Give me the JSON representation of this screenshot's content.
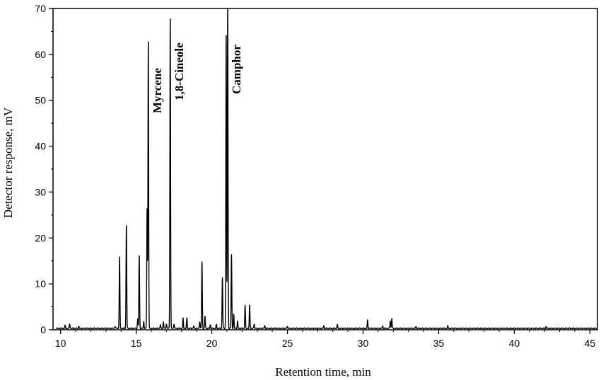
{
  "chart_data": {
    "type": "line",
    "title": "",
    "xlabel": "Retention time, min",
    "ylabel": "Detector response, mV",
    "xlim": [
      9.5,
      45.5
    ],
    "ylim": [
      0,
      70
    ],
    "xticks": [
      "10",
      "15",
      "20",
      "25",
      "30",
      "35",
      "40",
      "45"
    ],
    "yticks": [
      "0",
      "10",
      "20",
      "30",
      "40",
      "50",
      "60",
      "70"
    ],
    "grid": false,
    "legend": "none",
    "baseline": 0.3,
    "series": [
      {
        "color": "#000000",
        "peaks": [
          [
            10.3,
            0.6
          ],
          [
            10.6,
            1.0
          ],
          [
            11.2,
            0.4
          ],
          [
            13.6,
            0.5
          ],
          [
            13.9,
            15.5
          ],
          [
            14.35,
            22.5
          ],
          [
            15.1,
            2.0
          ],
          [
            15.2,
            15.8
          ],
          [
            15.5,
            1.5
          ],
          [
            15.72,
            26.0
          ],
          [
            15.8,
            62.5
          ],
          [
            16.6,
            0.8
          ],
          [
            16.8,
            1.4
          ],
          [
            17.0,
            1.0
          ],
          [
            17.25,
            67.8
          ],
          [
            17.5,
            1.0
          ],
          [
            18.1,
            2.2
          ],
          [
            18.35,
            2.2
          ],
          [
            18.8,
            0.5
          ],
          [
            19.2,
            1.5
          ],
          [
            19.35,
            14.5
          ],
          [
            19.55,
            2.6
          ],
          [
            19.9,
            0.8
          ],
          [
            20.3,
            0.8
          ],
          [
            20.7,
            11.0
          ],
          [
            20.95,
            64.0
          ],
          [
            21.05,
            71.0
          ],
          [
            21.3,
            16.0
          ],
          [
            21.45,
            3.0
          ],
          [
            21.7,
            1.5
          ],
          [
            22.2,
            5.0
          ],
          [
            22.5,
            5.0
          ],
          [
            22.8,
            1.0
          ],
          [
            23.5,
            0.6
          ],
          [
            25.0,
            0.5
          ],
          [
            27.4,
            0.6
          ],
          [
            28.3,
            0.8
          ],
          [
            30.3,
            1.8
          ],
          [
            31.3,
            0.5
          ],
          [
            31.8,
            1.6
          ],
          [
            31.9,
            2.2
          ],
          [
            33.5,
            0.4
          ],
          [
            35.6,
            0.5
          ],
          [
            42.1,
            0.4
          ]
        ]
      }
    ],
    "annotations": [
      {
        "text": "Myrcene",
        "x": 15.8
      },
      {
        "text": "1,8-Cineole",
        "x": 17.25
      },
      {
        "text": "Camphor",
        "x": 21.05
      }
    ]
  }
}
